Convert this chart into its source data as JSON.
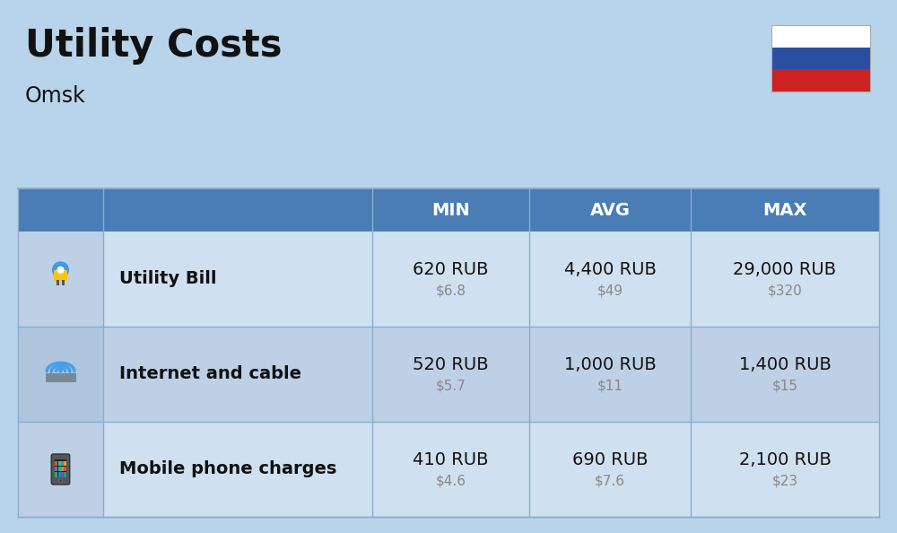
{
  "title": "Utility Costs",
  "subtitle": "Omsk",
  "background_color": "#b8d4ea",
  "header_color": "#4a7cb5",
  "header_text_color": "#ffffff",
  "row_colors_light": "#cfe0f0",
  "row_colors_dark": "#bdd0e6",
  "icon_col_light": "#bdd0e6",
  "icon_col_dark": "#afc5de",
  "columns": [
    "MIN",
    "AVG",
    "MAX"
  ],
  "rows": [
    {
      "label": "Utility Bill",
      "min_rub": "620 RUB",
      "min_usd": "$6.8",
      "avg_rub": "4,400 RUB",
      "avg_usd": "$49",
      "max_rub": "29,000 RUB",
      "max_usd": "$320"
    },
    {
      "label": "Internet and cable",
      "min_rub": "520 RUB",
      "min_usd": "$5.7",
      "avg_rub": "1,000 RUB",
      "avg_usd": "$11",
      "max_rub": "1,400 RUB",
      "max_usd": "$15"
    },
    {
      "label": "Mobile phone charges",
      "min_rub": "410 RUB",
      "min_usd": "$4.6",
      "avg_rub": "690 RUB",
      "avg_usd": "$7.6",
      "max_rub": "2,100 RUB",
      "max_usd": "$23"
    }
  ],
  "flag_colors": [
    "#ffffff",
    "#2b4fa0",
    "#cc2222"
  ],
  "title_fontsize": 30,
  "subtitle_fontsize": 17,
  "header_fontsize": 14,
  "label_fontsize": 14,
  "value_fontsize": 14,
  "usd_fontsize": 11,
  "grid_color": "#8aadcc",
  "text_dark": "#111111",
  "text_gray": "#888888"
}
